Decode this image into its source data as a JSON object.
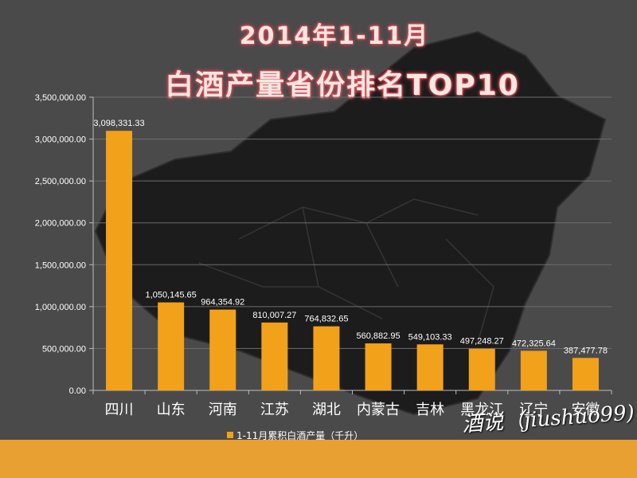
{
  "title_line1": "2014年1-11月",
  "title_line2": "白酒产量省份排名TOP10",
  "watermark": "酒说（jiushuo99)",
  "colors": {
    "bar": "#f2a11a",
    "background": "#4a4a4a",
    "band": "#e8a032"
  },
  "chart_data": {
    "type": "bar",
    "categories": [
      "四川",
      "山东",
      "河南",
      "江苏",
      "湖北",
      "内蒙古",
      "吉林",
      "黑龙江",
      "辽宁",
      "安徽"
    ],
    "series": [
      {
        "name": "1-11月累积白酒产量（千升）",
        "values": [
          3098331.33,
          1050145.65,
          964354.92,
          810007.27,
          764832.65,
          560882.95,
          549103.33,
          497248.27,
          472325.64,
          387477.78
        ],
        "labels": [
          "3,098,331.33",
          "1,050,145.65",
          "964,354.92",
          "810,007.27",
          "764,832.65",
          "560,882.95",
          "549,103.33",
          "497,248.27",
          "472,325.64",
          "387,477.78"
        ]
      }
    ],
    "ylim": [
      0,
      3500000
    ],
    "yticks": [
      "0.00",
      "500,000.00",
      "1,000,000.00",
      "1,500,000.00",
      "2,000,000.00",
      "2,500,000.00",
      "3,000,000.00",
      "3,500,000.00"
    ],
    "grid": true,
    "legend": "bottom-center"
  }
}
